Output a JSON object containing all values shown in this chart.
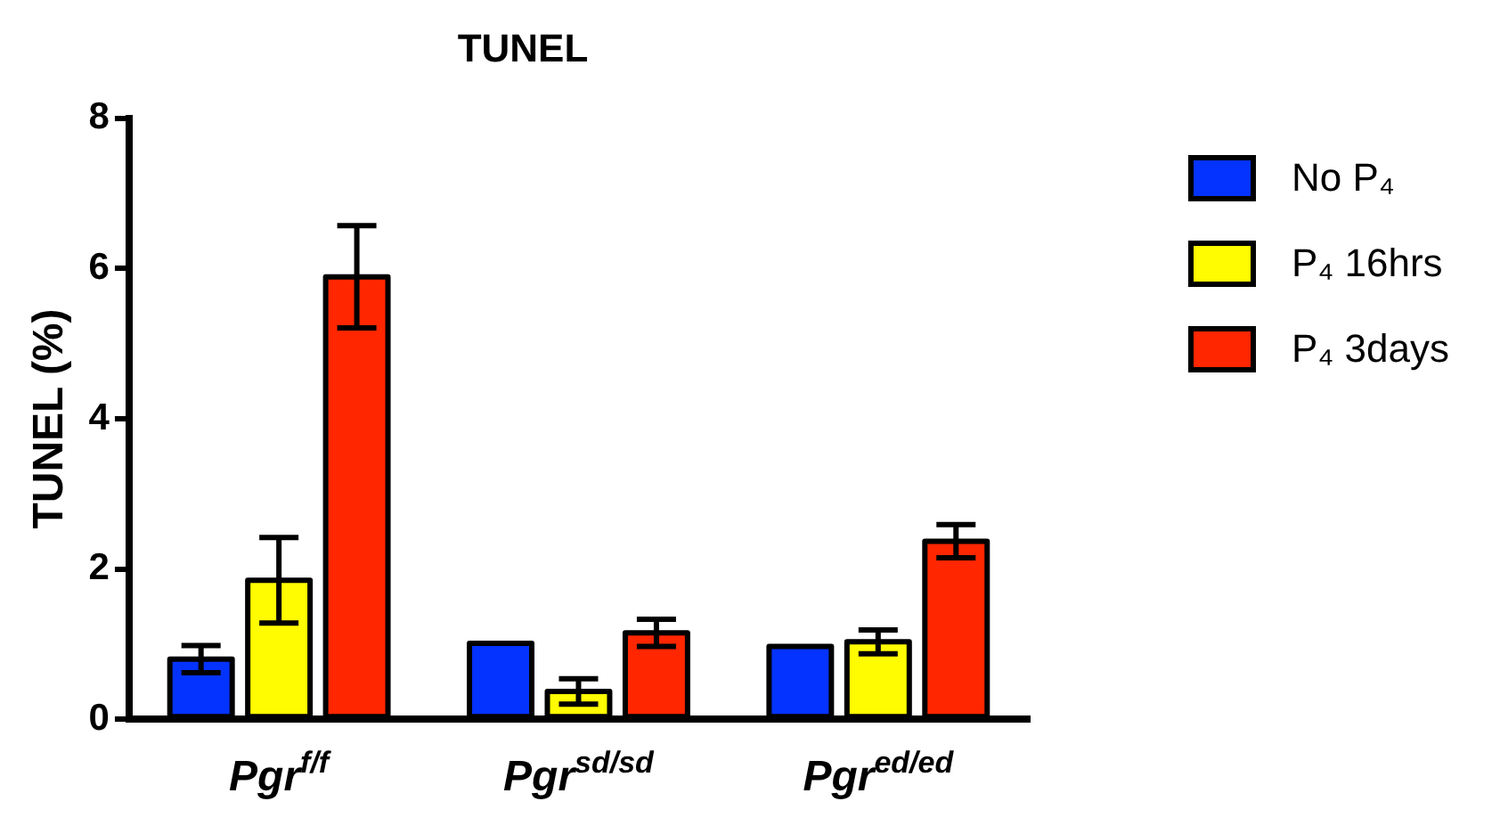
{
  "chart_data": {
    "type": "bar",
    "title": "TUNEL",
    "ylabel": "TUNEL (%)",
    "categories": [
      "Pgr$^{f/f}$",
      "Pgr$^{sd/sd}$",
      "Pgr$^{ed/ed}$"
    ],
    "series": [
      {
        "name": "No P₄",
        "color": "#0433ff",
        "values": [
          0.8,
          1.01,
          0.97
        ],
        "errors": [
          0.18,
          null,
          null
        ]
      },
      {
        "name": "P₄ 16hrs",
        "color": "#fffb00",
        "values": [
          1.85,
          0.37,
          1.03
        ],
        "errors": [
          0.57,
          0.17,
          0.16
        ]
      },
      {
        "name": "P₄ 3days",
        "color": "#ff2600",
        "values": [
          5.89,
          1.15,
          2.37
        ],
        "errors": [
          0.68,
          0.18,
          0.22
        ]
      }
    ],
    "ylim": [
      0,
      8
    ],
    "yticks": [
      0,
      2,
      4,
      6,
      8
    ],
    "grid": false,
    "legend": "top right"
  }
}
